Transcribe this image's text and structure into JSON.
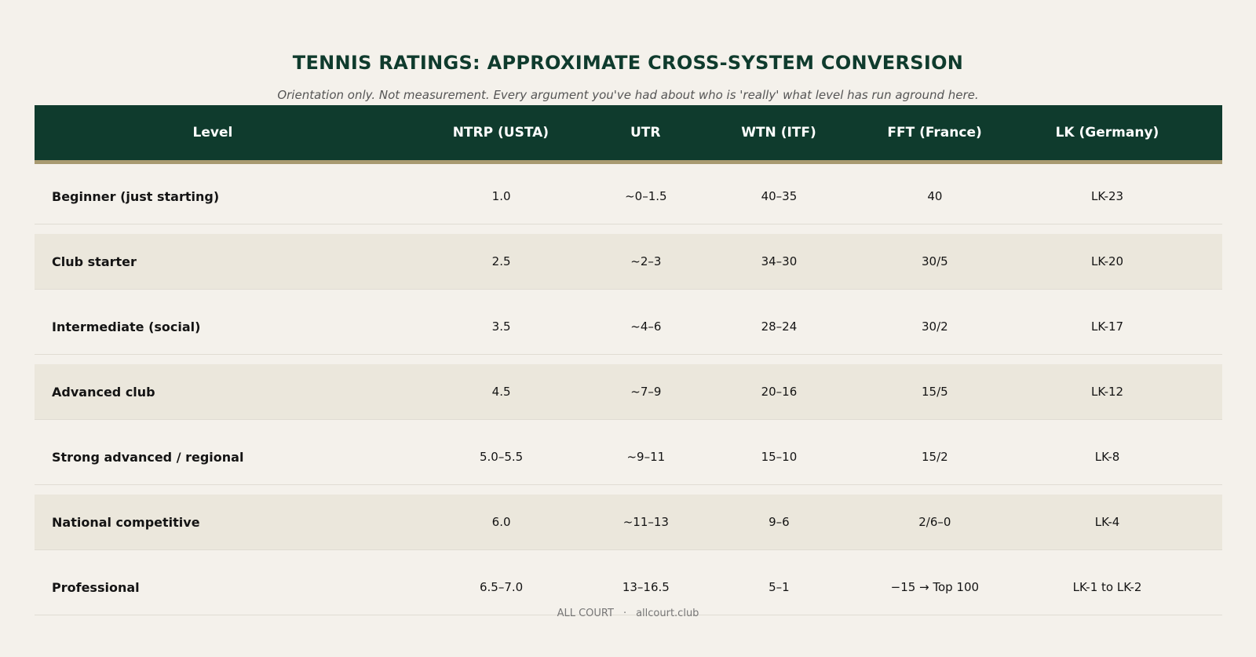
{
  "title": "TENNIS RATINGS: APPROXIMATE CROSS-SYSTEM CONVERSION",
  "subtitle": "Orientation only. Not measurement. Every argument you've had about who is 'really' what level has run aground here.",
  "table": {
    "columns": [
      "Level",
      "NTRP (USTA)",
      "UTR",
      "WTN (ITF)",
      "FFT (France)",
      "LK (Germany)"
    ],
    "rows": [
      [
        "Beginner (just starting)",
        "1.0",
        "~0–1.5",
        "40–35",
        "40",
        "LK-23"
      ],
      [
        "Club starter",
        "2.5",
        "~2–3",
        "34–30",
        "30/5",
        "LK-20"
      ],
      [
        "Intermediate (social)",
        "3.5",
        "~4–6",
        "28–24",
        "30/2",
        "LK-17"
      ],
      [
        "Advanced club",
        "4.5",
        "~7–9",
        "20–16",
        "15/5",
        "LK-12"
      ],
      [
        "Strong advanced / regional",
        "5.0–5.5",
        "~9–11",
        "15–10",
        "15/2",
        "LK-8"
      ],
      [
        "National competitive",
        "6.0",
        "~11–13",
        "9–6",
        "2/6–0",
        "LK-4"
      ],
      [
        "Professional",
        "6.5–7.0",
        "13–16.5",
        "5–1",
        "−15 → Top 100",
        "LK-1 to LK-2"
      ]
    ]
  },
  "footer": {
    "brand": "ALL COURT",
    "separator": "·",
    "site": "allcourt.club"
  },
  "colors": {
    "header_bg": "#0f3b2d",
    "header_rule": "#a89a70",
    "page_bg": "#f4f1eb",
    "alt_row_bg": "#ebe7dc"
  }
}
